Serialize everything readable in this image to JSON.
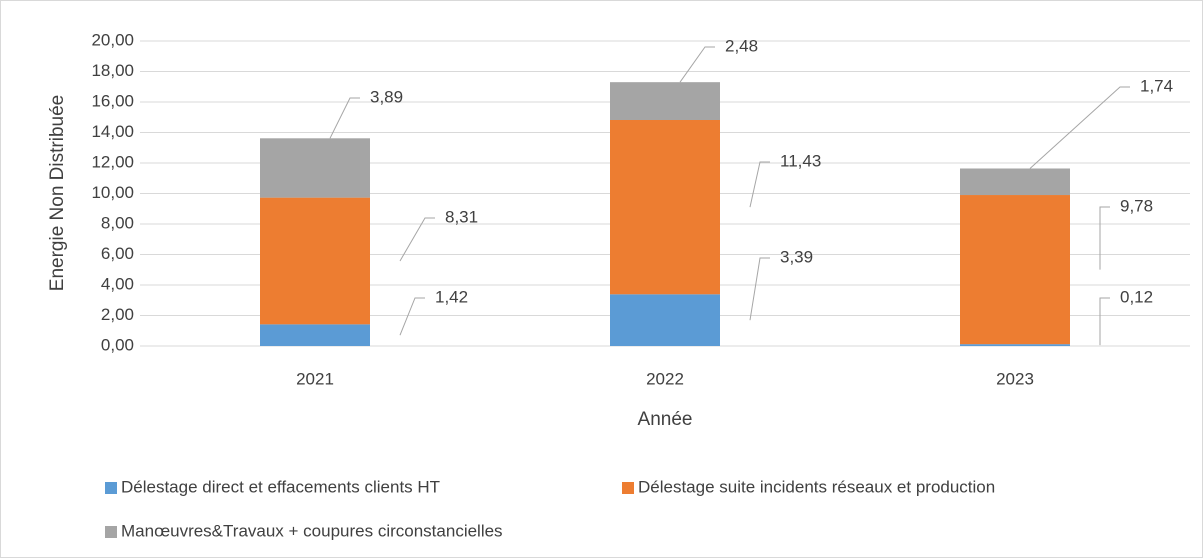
{
  "chart_data": {
    "type": "stacked-bar",
    "categories": [
      "2021",
      "2022",
      "2023"
    ],
    "series": [
      {
        "name": "Délestage direct et effacements clients HT",
        "color": "#5b9bd5",
        "values": [
          1.42,
          3.39,
          0.12
        ],
        "value_labels": [
          "1,42",
          "3,39",
          "0,12"
        ]
      },
      {
        "name": "Délestage suite incidents réseaux et production",
        "color": "#ed7d31",
        "values": [
          8.31,
          11.43,
          9.78
        ],
        "value_labels": [
          "8,31",
          "11,43",
          "9,78"
        ]
      },
      {
        "name": "Manœuvres&Travaux + coupures circonstancielles",
        "color": "#a5a5a5",
        "values": [
          3.89,
          2.48,
          1.74
        ],
        "value_labels": [
          "3,89",
          "2,48",
          "1,74"
        ]
      }
    ],
    "ylabel": "Energie Non Distribuée",
    "xlabel": "Année",
    "ylim": [
      0,
      20
    ],
    "yticks": [
      {
        "value": 0,
        "label": "0,00"
      },
      {
        "value": 2,
        "label": "2,00"
      },
      {
        "value": 4,
        "label": "4,00"
      },
      {
        "value": 6,
        "label": "6,00"
      },
      {
        "value": 8,
        "label": "8,00"
      },
      {
        "value": 10,
        "label": "10,00"
      },
      {
        "value": 12,
        "label": "12,00"
      },
      {
        "value": 14,
        "label": "14,00"
      },
      {
        "value": 16,
        "label": "16,00"
      },
      {
        "value": 18,
        "label": "18,00"
      },
      {
        "value": 20,
        "label": "20,00"
      }
    ],
    "grid": true
  }
}
